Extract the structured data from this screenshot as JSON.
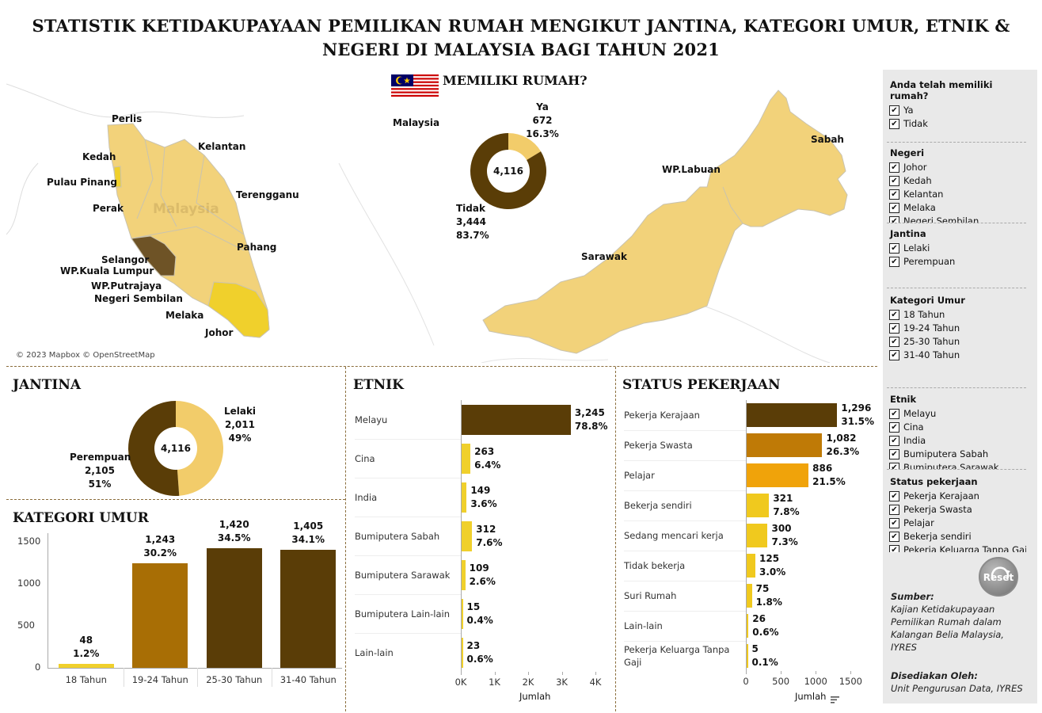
{
  "title": "STATISTIK KETIDAKUPAYAAN PEMILIKAN RUMAH MENGIKUT JANTINA, KATEGORI UMUR, ETNIK & NEGERI DI MALAYSIA BAGI TAHUN 2021",
  "map": {
    "attribution": "© 2023 Mapbox © OpenStreetMap",
    "watermark": "Malaysia",
    "states": [
      "Perlis",
      "Kedah",
      "Pulau Pinang",
      "Perak",
      "Kelantan",
      "Terengganu",
      "Pahang",
      "Selangor",
      "WP.Kuala Lumpur",
      "WP.Putrajaya",
      "Negeri Sembilan",
      "Melaka",
      "Johor",
      "Sabah",
      "WP.Labuan",
      "Sarawak"
    ],
    "colors": {
      "land_light": "#f2d27a",
      "selangor": "#6e5326",
      "johor": "#f0d02c",
      "background": "#ffffff"
    }
  },
  "own_home": {
    "title": "MEMILIKI RUMAH?",
    "region": "Malaysia",
    "total": "4,116",
    "ya": {
      "label": "Ya",
      "value": "672",
      "pct": "16.3%"
    },
    "tidak": {
      "label": "Tidak",
      "value": "3,444",
      "pct": "83.7%"
    }
  },
  "jantina": {
    "title": "JANTINA",
    "total": "4,116",
    "lelaki": {
      "label": "Lelaki",
      "value": "2,011",
      "pct": "49%"
    },
    "perempuan": {
      "label": "Perempuan",
      "value": "2,105",
      "pct": "51%"
    }
  },
  "kategori_umur": {
    "title": "KATEGORI UMUR",
    "ticks": [
      "1500",
      "1000",
      "500",
      "0"
    ],
    "bars": [
      {
        "label": "18 Tahun",
        "value": "48",
        "pct": "1.2%"
      },
      {
        "label": "19-24 Tahun",
        "value": "1,243",
        "pct": "30.2%"
      },
      {
        "label": "25-30 Tahun",
        "value": "1,420",
        "pct": "34.5%"
      },
      {
        "label": "31-40 Tahun",
        "value": "1,405",
        "pct": "34.1%"
      }
    ]
  },
  "etnik": {
    "title": "ETNIK",
    "axis_title": "Jumlah",
    "ticks": [
      "0K",
      "1K",
      "2K",
      "3K",
      "4K"
    ],
    "bars": [
      {
        "label": "Melayu",
        "value": "3,245",
        "pct": "78.8%"
      },
      {
        "label": "Cina",
        "value": "263",
        "pct": "6.4%"
      },
      {
        "label": "India",
        "value": "149",
        "pct": "3.6%"
      },
      {
        "label": "Bumiputera Sabah",
        "value": "312",
        "pct": "7.6%"
      },
      {
        "label": "Bumiputera Sarawak",
        "value": "109",
        "pct": "2.6%"
      },
      {
        "label": "Bumiputera Lain-lain",
        "value": "15",
        "pct": "0.4%"
      },
      {
        "label": "Lain-lain",
        "value": "23",
        "pct": "0.6%"
      }
    ]
  },
  "status": {
    "title": "STATUS PEKERJAAN",
    "axis_title": "Jumlah",
    "ticks": [
      "0",
      "500",
      "1000",
      "1500"
    ],
    "bars": [
      {
        "label": "Pekerja Kerajaan",
        "value": "1,296",
        "pct": "31.5%"
      },
      {
        "label": "Pekerja Swasta",
        "value": "1,082",
        "pct": "26.3%"
      },
      {
        "label": "Pelajar",
        "value": "886",
        "pct": "21.5%"
      },
      {
        "label": "Bekerja sendiri",
        "value": "321",
        "pct": "7.8%"
      },
      {
        "label": "Sedang mencari kerja",
        "value": "300",
        "pct": "7.3%"
      },
      {
        "label": "Tidak bekerja",
        "value": "125",
        "pct": "3.0%"
      },
      {
        "label": "Suri Rumah",
        "value": "75",
        "pct": "1.8%"
      },
      {
        "label": "Lain-lain",
        "value": "26",
        "pct": "0.6%"
      },
      {
        "label": "Pekerja Keluarga Tanpa Gaji",
        "value": "5",
        "pct": "0.1%"
      }
    ]
  },
  "filters": {
    "own": {
      "title": "Anda telah memiliki rumah?",
      "options": [
        "Ya",
        "Tidak"
      ]
    },
    "negeri": {
      "title": "Negeri",
      "options": [
        "Johor",
        "Kedah",
        "Kelantan",
        "Melaka",
        "Negeri Sembilan"
      ]
    },
    "jantina": {
      "title": "Jantina",
      "options": [
        "Lelaki",
        "Perempuan"
      ]
    },
    "umur": {
      "title": "Kategori Umur",
      "options": [
        "18 Tahun",
        "19-24 Tahun",
        "25-30 Tahun",
        "31-40 Tahun"
      ]
    },
    "etnik": {
      "title": "Etnik",
      "options": [
        "Melayu",
        "Cina",
        "India",
        "Bumiputera Sabah",
        "Bumiputera Sarawak"
      ]
    },
    "status": {
      "title": "Status pekerjaan",
      "options": [
        "Pekerja Kerajaan",
        "Pekerja Swasta",
        "Pelajar",
        "Bekerja sendiri",
        "Pekerja Keluarga Tanpa Gaji"
      ]
    }
  },
  "reset_label": "Reset",
  "source": {
    "heading": "Sumber:",
    "lines": [
      "Kajian Ketidakupayaan",
      "Pemilikan Rumah dalam",
      "Kalangan Belia Malaysia,",
      "IYRES"
    ]
  },
  "prepared": {
    "heading": "Disediakan Oleh:",
    "line": "Unit Pengurusan Data, IYRES"
  },
  "chart_data": [
    {
      "type": "pie",
      "title": "MEMILIKI RUMAH?",
      "categories": [
        "Ya",
        "Tidak"
      ],
      "values": [
        672,
        3444
      ],
      "total": 4116,
      "colors": [
        "#f2cc6a",
        "#5a3d07"
      ]
    },
    {
      "type": "pie",
      "title": "JANTINA",
      "categories": [
        "Lelaki",
        "Perempuan"
      ],
      "values": [
        2011,
        2105
      ],
      "total": 4116,
      "colors": [
        "#f2cc6a",
        "#5a3d07"
      ]
    },
    {
      "type": "bar",
      "title": "KATEGORI UMUR",
      "categories": [
        "18 Tahun",
        "19-24 Tahun",
        "25-30 Tahun",
        "31-40 Tahun"
      ],
      "values": [
        48,
        1243,
        1420,
        1405
      ],
      "ylim": [
        0,
        1600
      ],
      "colors": [
        "#f0d02c",
        "#a86e05",
        "#5a3d07",
        "#5a3d07"
      ]
    },
    {
      "type": "bar",
      "orientation": "horizontal",
      "title": "ETNIK",
      "xlabel": "Jumlah",
      "categories": [
        "Melayu",
        "Cina",
        "India",
        "Bumiputera Sabah",
        "Bumiputera Sarawak",
        "Bumiputera Lain-lain",
        "Lain-lain"
      ],
      "values": [
        3245,
        263,
        149,
        312,
        109,
        15,
        23
      ],
      "xlim": [
        0,
        4000
      ],
      "colors": [
        "#5a3d07",
        "#f0d02c",
        "#f0d02c",
        "#f0d02c",
        "#f0d02c",
        "#f0d02c",
        "#f0d02c"
      ]
    },
    {
      "type": "bar",
      "orientation": "horizontal",
      "title": "STATUS PEKERJAAN",
      "xlabel": "Jumlah",
      "categories": [
        "Pekerja Kerajaan",
        "Pekerja Swasta",
        "Pelajar",
        "Bekerja sendiri",
        "Sedang mencari kerja",
        "Tidak bekerja",
        "Suri Rumah",
        "Lain-lain",
        "Pekerja Keluarga Tanpa Gaji"
      ],
      "values": [
        1296,
        1082,
        886,
        321,
        300,
        125,
        75,
        26,
        5
      ],
      "xlim": [
        0,
        1700
      ],
      "colors": [
        "#5a3d07",
        "#bf7a06",
        "#f0a30a",
        "#f0c91e",
        "#f0c91e",
        "#f0c91e",
        "#f0c91e",
        "#f0c91e",
        "#f0c91e"
      ]
    }
  ]
}
